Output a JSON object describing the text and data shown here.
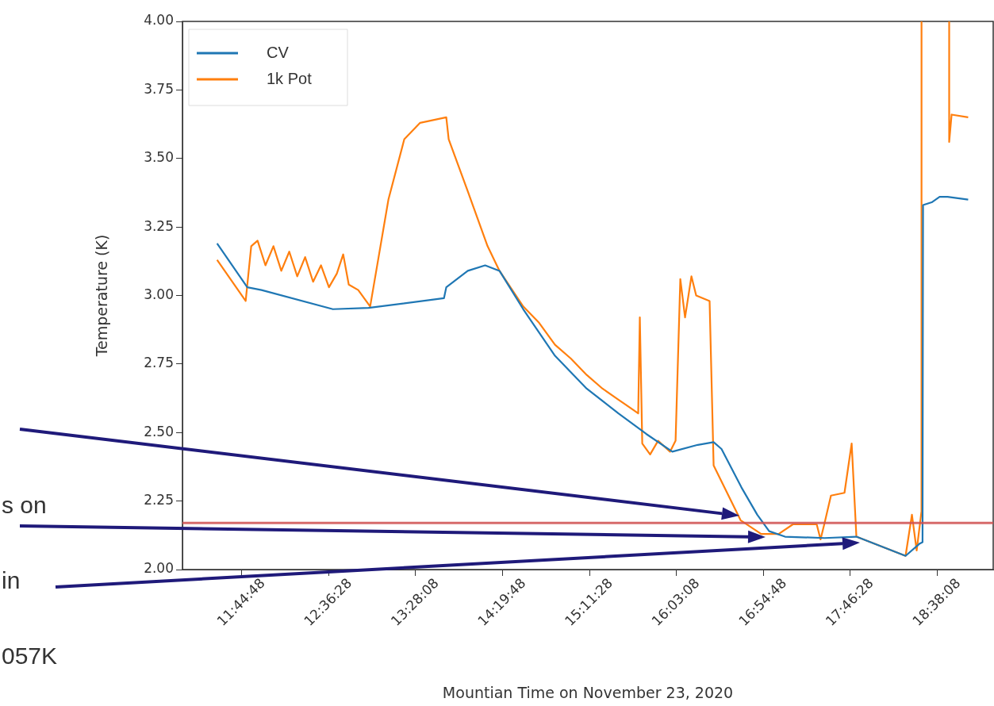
{
  "chart_data": {
    "type": "line",
    "xlabel": "Mountian Time on November 23, 2020",
    "ylabel": "Temperature (K)",
    "xlim": [
      11.16,
      19.19
    ],
    "ylim": [
      2.0,
      4.0
    ],
    "xticks": [
      {
        "value": 11.74667,
        "label": "11:44:48"
      },
      {
        "value": 12.60778,
        "label": "12:36:28"
      },
      {
        "value": 13.46889,
        "label": "13:28:08"
      },
      {
        "value": 14.33,
        "label": "14:19:48"
      },
      {
        "value": 15.19111,
        "label": "15:11:28"
      },
      {
        "value": 16.05222,
        "label": "16:03:08"
      },
      {
        "value": 16.91333,
        "label": "16:54:48"
      },
      {
        "value": 17.77444,
        "label": "17:46:28"
      },
      {
        "value": 18.63556,
        "label": "18:38:08"
      }
    ],
    "yticks": [
      {
        "value": 2.0,
        "label": "2.00"
      },
      {
        "value": 2.25,
        "label": "2.25"
      },
      {
        "value": 2.5,
        "label": "2.50"
      },
      {
        "value": 2.75,
        "label": "2.75"
      },
      {
        "value": 3.0,
        "label": "3.00"
      },
      {
        "value": 3.25,
        "label": "3.25"
      },
      {
        "value": 3.5,
        "label": "3.50"
      },
      {
        "value": 3.75,
        "label": "3.75"
      },
      {
        "value": 4.0,
        "label": "4.00"
      }
    ],
    "grid": false,
    "legend": "top left",
    "marker": "none",
    "line_style": "solid",
    "series": [
      {
        "name": "CV",
        "color": "#1f77b4",
        "x": [
          11.503,
          11.802,
          11.943,
          12.65,
          13.003,
          13.75,
          13.773,
          13.986,
          14.158,
          14.3,
          14.535,
          14.85,
          15.164,
          15.478,
          15.753,
          16.012,
          16.264,
          16.421,
          16.499,
          16.696,
          16.853,
          16.971,
          17.128,
          17.52,
          17.835,
          18.322,
          18.463,
          18.49,
          18.495,
          18.581,
          18.659,
          18.738,
          18.942
        ],
        "values": [
          3.19,
          3.03,
          3.02,
          2.95,
          2.955,
          2.99,
          3.03,
          3.09,
          3.11,
          3.09,
          2.95,
          2.78,
          2.66,
          2.57,
          2.495,
          2.43,
          2.455,
          2.465,
          2.44,
          2.3,
          2.2,
          2.14,
          2.12,
          2.115,
          2.12,
          2.05,
          2.095,
          2.1,
          3.33,
          3.34,
          3.36,
          3.36,
          3.35
        ]
      },
      {
        "name": "1k Pot",
        "color": "#ff7f0e",
        "x": [
          11.503,
          11.786,
          11.841,
          11.904,
          11.982,
          12.061,
          12.139,
          12.218,
          12.297,
          12.375,
          12.454,
          12.532,
          12.611,
          12.689,
          12.752,
          12.807,
          12.901,
          13.019,
          13.2,
          13.357,
          13.514,
          13.773,
          13.797,
          13.986,
          14.182,
          14.3,
          14.535,
          14.693,
          14.85,
          15.007,
          15.164,
          15.321,
          15.478,
          15.635,
          15.674,
          15.69,
          15.714,
          15.792,
          15.871,
          15.989,
          16.044,
          16.091,
          16.138,
          16.201,
          16.248,
          16.381,
          16.421,
          16.688,
          16.892,
          17.065,
          17.206,
          17.442,
          17.48,
          17.52,
          17.583,
          17.717,
          17.788,
          17.835,
          18.322,
          18.385,
          18.432,
          18.479,
          18.48,
          null,
          18.754,
          18.754,
          18.778,
          18.942
        ],
        "values": [
          3.13,
          2.98,
          3.18,
          3.2,
          3.11,
          3.18,
          3.09,
          3.16,
          3.07,
          3.14,
          3.05,
          3.11,
          3.03,
          3.08,
          3.15,
          3.04,
          3.02,
          2.96,
          3.35,
          3.57,
          3.63,
          3.65,
          3.57,
          3.38,
          3.18,
          3.09,
          2.96,
          2.9,
          2.82,
          2.77,
          2.71,
          2.66,
          2.62,
          2.58,
          2.57,
          2.92,
          2.46,
          2.42,
          2.47,
          2.43,
          2.47,
          3.06,
          2.92,
          3.07,
          3.0,
          2.98,
          2.38,
          2.18,
          2.13,
          2.13,
          2.165,
          2.165,
          2.11,
          2.17,
          2.27,
          2.28,
          2.46,
          2.12,
          2.05,
          2.2,
          2.07,
          2.21,
          4.0,
          null,
          4.0,
          3.56,
          3.66,
          3.65
        ]
      }
    ],
    "ref_lines": [
      {
        "axis": "y",
        "value": 2.17,
        "color": "#cf5050"
      }
    ],
    "annotations": [
      "s on",
      "in",
      "057K"
    ]
  }
}
